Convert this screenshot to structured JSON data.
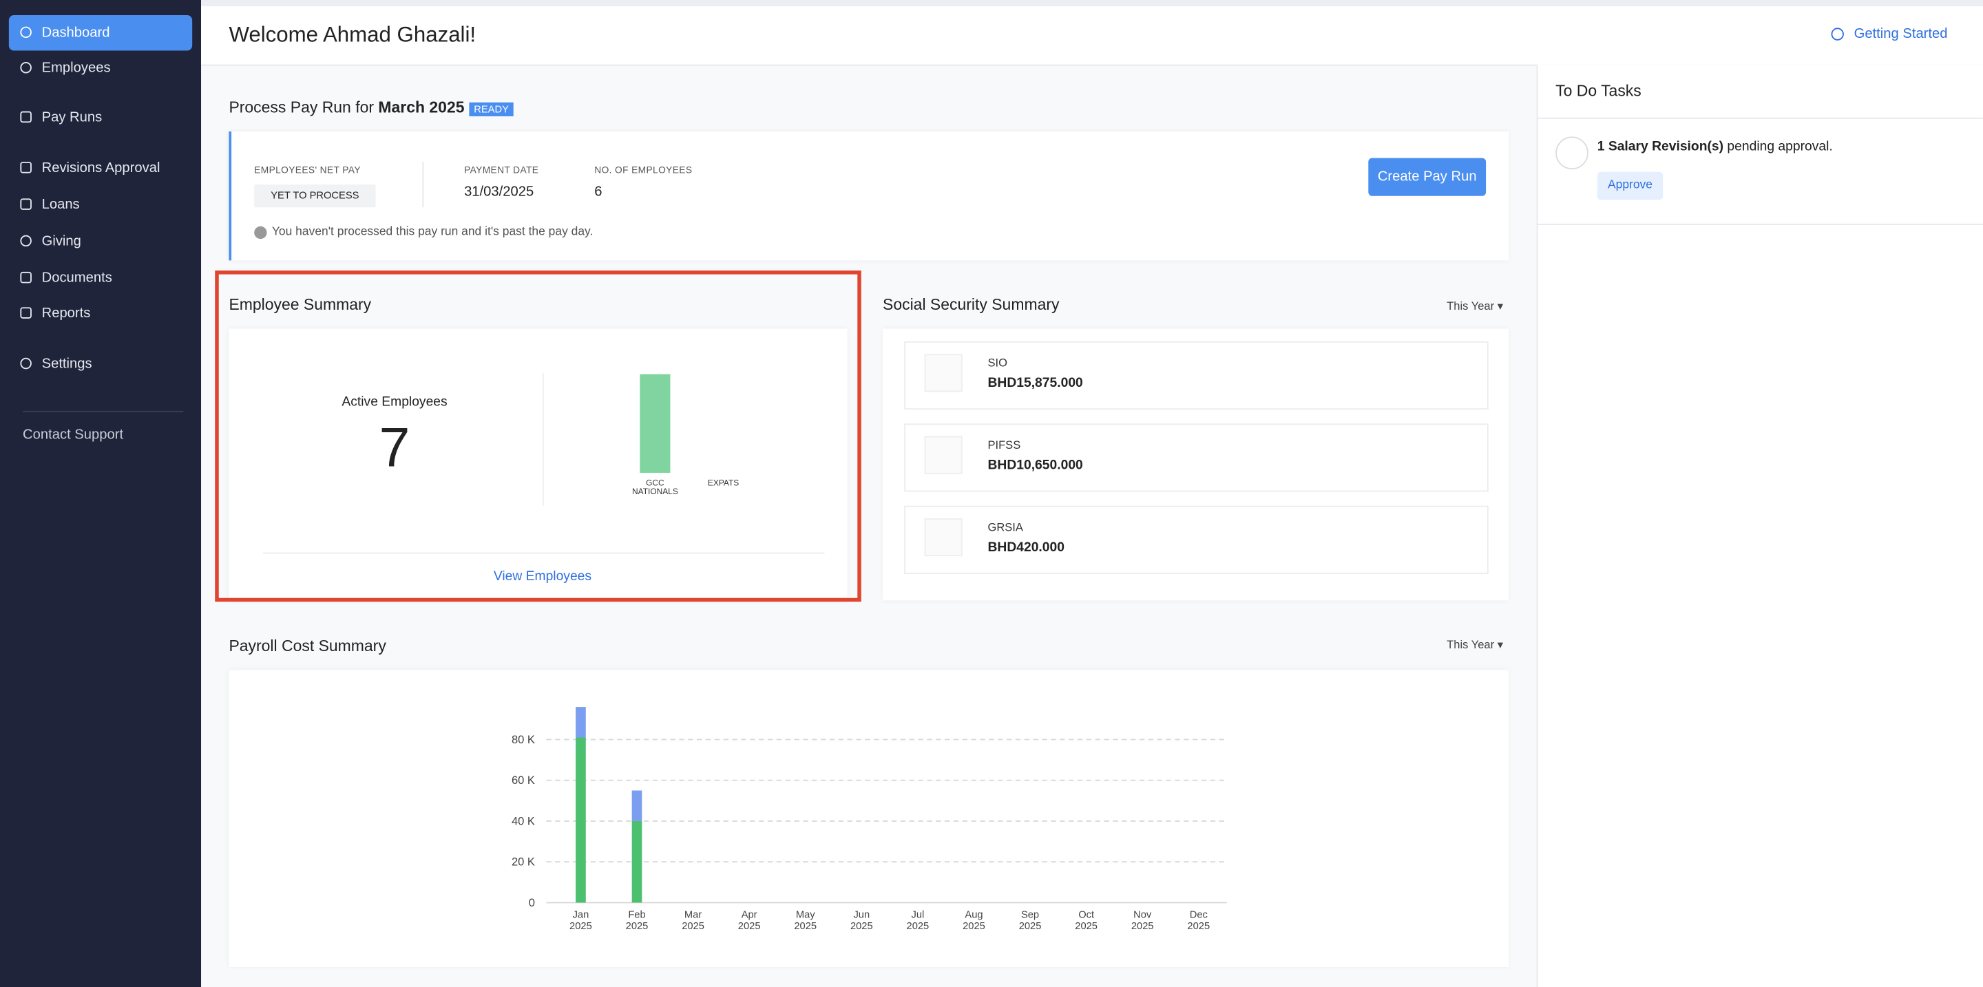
{
  "sidebar": {
    "items": [
      "Dashboard",
      "Employees",
      "Pay Runs",
      "Revisions Approval",
      "Loans",
      "Giving",
      "Documents",
      "Reports",
      "Settings"
    ],
    "contact_support": "Contact Support"
  },
  "header": {
    "title": "Welcome Ahmad Ghazali!",
    "getting_started": "Getting Started"
  },
  "pay_run": {
    "title_prefix": "Process Pay Run for",
    "period": "March 2025",
    "status": "READY",
    "net_pay_label": "EMPLOYEES' NET PAY",
    "net_pay_value": "YET TO PROCESS",
    "payment_date_label": "PAYMENT DATE",
    "payment_date": "31/03/2025",
    "employees_label": "NO. OF EMPLOYEES",
    "employees": 6,
    "note": "You haven't processed this pay run and it's past the pay day.",
    "button": "Create Pay Run"
  },
  "employee_summary": {
    "title": "Employee Summary",
    "active_label": "Active Employees",
    "active": 7,
    "chart": {
      "type": "bar",
      "categories": [
        "GCC NATIONALS",
        "EXPATS"
      ],
      "values": [
        7,
        0
      ],
      "color": "#80d4a0"
    },
    "link": "View Employees"
  },
  "social_security": {
    "title": "Social Security Summary",
    "period": "This Year",
    "items": [
      {
        "name": "SIO",
        "amount": "BHD15,875.000"
      },
      {
        "name": "PIFSS",
        "amount": "BHD10,650.000"
      },
      {
        "name": "GRSIA",
        "amount": "BHD420.000"
      }
    ]
  },
  "payroll_cost": {
    "title": "Payroll Cost Summary",
    "period": "This Year",
    "chart": {
      "type": "bar",
      "stacked": true,
      "categories": [
        "Jan 2025",
        "Feb 2025",
        "Mar 2025",
        "Apr 2025",
        "May 2025",
        "Jun 2025",
        "Jul 2025",
        "Aug 2025",
        "Sep 2025",
        "Oct 2025",
        "Nov 2025",
        "Dec 2025"
      ],
      "series": [
        {
          "color": "#4cc06f",
          "values": [
            81000,
            40000,
            0,
            0,
            0,
            0,
            0,
            0,
            0,
            0,
            0,
            0
          ]
        },
        {
          "color": "#7c9ef0",
          "values": [
            15000,
            15000,
            0,
            0,
            0,
            0,
            0,
            0,
            0,
            0,
            0,
            0
          ]
        }
      ],
      "ylim": [
        0,
        100000
      ],
      "yticks": [
        0,
        {
          "value": 20000,
          "label": "20 K"
        },
        {
          "value": 40000,
          "label": "40 K"
        },
        {
          "value": 60000,
          "label": "60 K"
        },
        {
          "value": 80000,
          "label": "80 K"
        }
      ],
      "grid": true
    }
  },
  "todo": {
    "title": "To Do Tasks",
    "items": [
      {
        "count": "1 Salary Revision(s)",
        "text": "pending approval.",
        "action": "Approve"
      }
    ]
  }
}
